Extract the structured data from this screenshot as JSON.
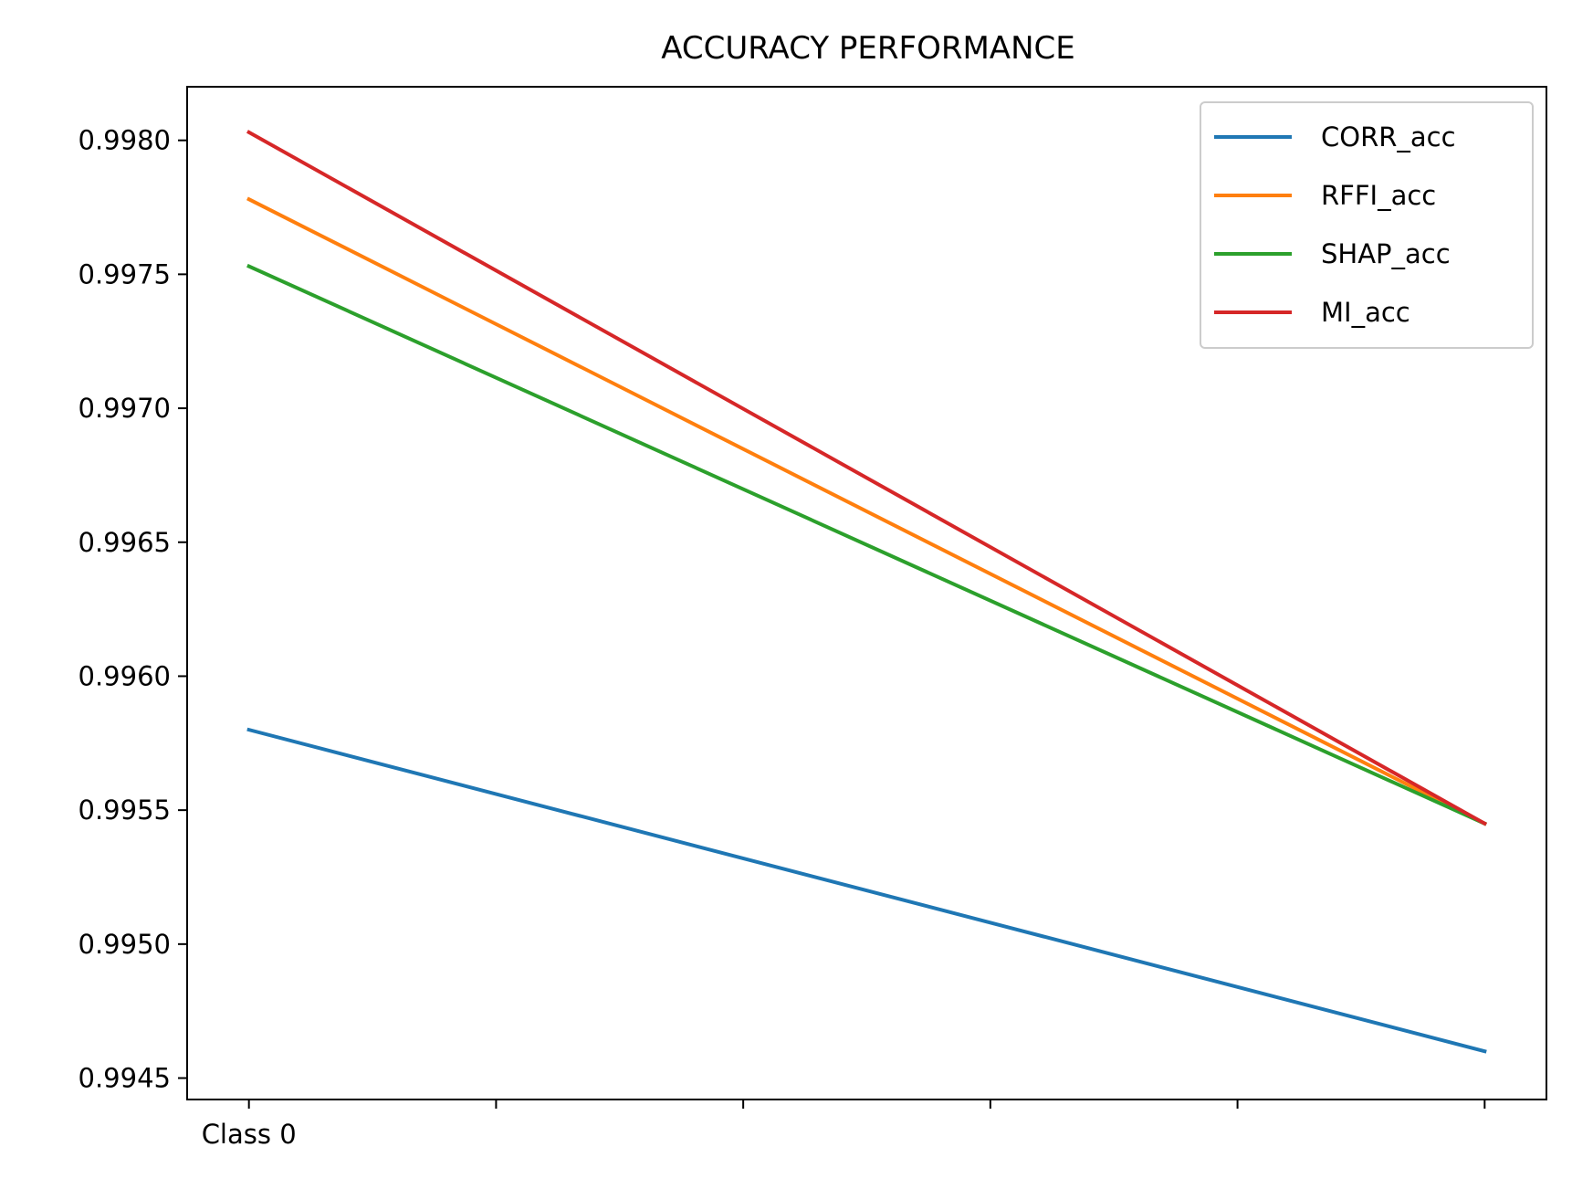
{
  "chart_data": {
    "type": "line",
    "title": "ACCURACY PERFORMANCE",
    "xlabel": "",
    "ylabel": "",
    "x": [
      0,
      1,
      2,
      3,
      4,
      5
    ],
    "x_tick_labels": [
      "Class 0",
      "",
      "",
      "",
      "",
      ""
    ],
    "ylim": [
      0.99442,
      0.9982
    ],
    "y_ticks": [
      0.9945,
      0.995,
      0.9955,
      0.996,
      0.9965,
      0.997,
      0.9975,
      0.998
    ],
    "y_tick_labels": [
      "0.9945",
      "0.9950",
      "0.9955",
      "0.9960",
      "0.9965",
      "0.9970",
      "0.9975",
      "0.9980"
    ],
    "series": [
      {
        "name": "CORR_acc",
        "color": "#1f77b4",
        "points": [
          [
            0,
            0.9958
          ],
          [
            5,
            0.9946
          ]
        ]
      },
      {
        "name": "RFFI_acc",
        "color": "#ff7f0e",
        "points": [
          [
            0,
            0.99778
          ],
          [
            5,
            0.99545
          ]
        ]
      },
      {
        "name": "SHAP_acc",
        "color": "#2ca02c",
        "points": [
          [
            0,
            0.99753
          ],
          [
            5,
            0.99545
          ]
        ]
      },
      {
        "name": "MI_acc",
        "color": "#d62728",
        "points": [
          [
            0,
            0.99803
          ],
          [
            5,
            0.99545
          ]
        ]
      }
    ],
    "legend_position": "top-right",
    "grid": false
  }
}
